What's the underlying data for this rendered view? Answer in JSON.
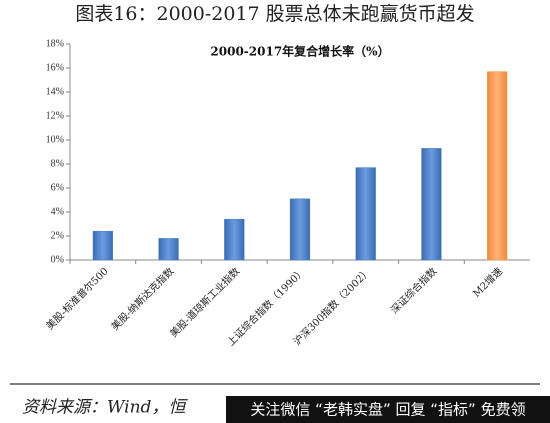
{
  "title": "图表16：2000-2017 股票总体未跑赢货币超发",
  "chart_data": {
    "type": "bar",
    "title": "2000-2017年复合增长率（%）",
    "categories": [
      "美股-标准普尔500",
      "美股-纳斯达克指数",
      "美股-道琼斯工业指数",
      "上证综合指数（1990）",
      "沪深300指数（2002）",
      "深证综合指数",
      "M2增速"
    ],
    "values": [
      2.4,
      1.8,
      3.4,
      5.1,
      7.7,
      9.3,
      15.7
    ],
    "colors": [
      "#4a7ebb",
      "#4a7ebb",
      "#4a7ebb",
      "#4a7ebb",
      "#4a7ebb",
      "#4a7ebb",
      "#f79646"
    ],
    "ylim": [
      0,
      18
    ],
    "yticks": [
      {
        "value": 0,
        "label": "0%"
      },
      {
        "value": 2,
        "label": "2%"
      },
      {
        "value": 4,
        "label": "4%"
      },
      {
        "value": 6,
        "label": "6%"
      },
      {
        "value": 8,
        "label": "8%"
      },
      {
        "value": 10,
        "label": "10%"
      },
      {
        "value": 12,
        "label": "12%"
      },
      {
        "value": 14,
        "label": "14%"
      },
      {
        "value": 16,
        "label": "16%"
      },
      {
        "value": 18,
        "label": "18%"
      }
    ],
    "grid": false
  },
  "footer": {
    "source": "资料来源：Wind，恒",
    "watermark": "关注微信 “老韩实盘” 回复 “指标” 免费领"
  }
}
